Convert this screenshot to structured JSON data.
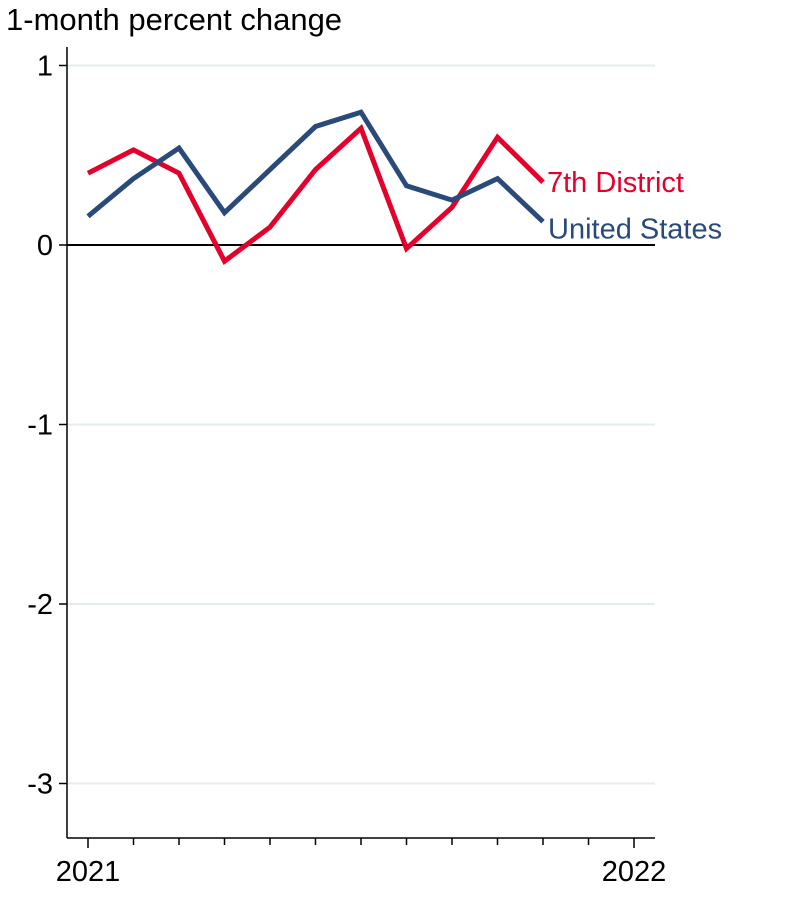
{
  "chart_data": {
    "type": "line",
    "title": "",
    "ylabel": "1-month percent change",
    "xlabel": "",
    "ylim": [
      -3.3,
      1.1
    ],
    "yticks": [
      1,
      0,
      -1,
      -2,
      -3
    ],
    "x_tick_labels": [
      {
        "position": 0,
        "label": "2021"
      },
      {
        "position": 12,
        "label": "2022"
      }
    ],
    "x_minor_tick_count": 13,
    "zero_line": true,
    "grid": "horizontal",
    "legend_placement": "inline-right",
    "series": [
      {
        "name": "7th District",
        "color": "#e4002b",
        "label_anchor": "last-point",
        "values": [
          0.4,
          0.53,
          0.4,
          -0.09,
          0.1,
          0.42,
          0.65,
          -0.02,
          0.21,
          0.6,
          0.35
        ]
      },
      {
        "name": "United States",
        "color": "#2a4a7a",
        "label_anchor": "last-point",
        "values": [
          0.16,
          0.37,
          0.54,
          0.18,
          0.42,
          0.66,
          0.74,
          0.33,
          0.25,
          0.37,
          0.13
        ]
      }
    ]
  }
}
